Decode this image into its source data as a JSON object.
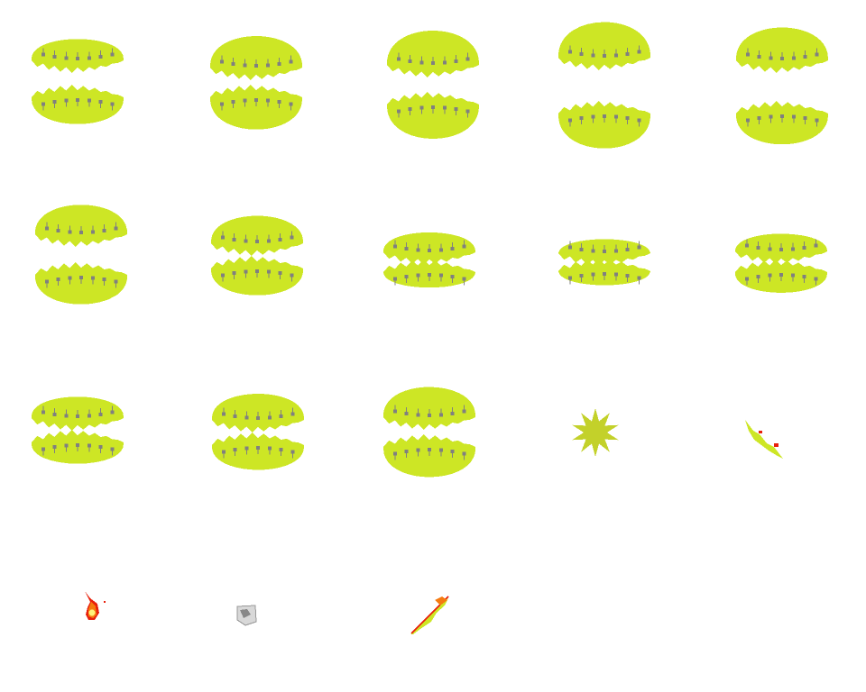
{
  "sprite_sheet": {
    "colors": {
      "jaw": "#cde625",
      "tooth_mark": "#808080",
      "tooth_shade": "#b4b4a0",
      "star": "#c3d12a",
      "fire_outer": "#e8200c",
      "fire_mid": "#f57a10",
      "fire_core": "#fff27a",
      "ice": "#b8b8b8"
    },
    "sprites": [
      {
        "kind": "mouth",
        "openness": "half-open"
      },
      {
        "kind": "mouth",
        "openness": "open"
      },
      {
        "kind": "mouth",
        "openness": "open"
      },
      {
        "kind": "mouth",
        "openness": "wide-open"
      },
      {
        "kind": "mouth",
        "openness": "wide-open"
      },
      {
        "kind": "mouth",
        "openness": "open"
      },
      {
        "kind": "mouth",
        "openness": "slightly-open"
      },
      {
        "kind": "mouth",
        "openness": "closed"
      },
      {
        "kind": "mouth",
        "openness": "closed"
      },
      {
        "kind": "mouth",
        "openness": "closed"
      },
      {
        "kind": "mouth",
        "openness": "slightly-open"
      },
      {
        "kind": "mouth",
        "openness": "slightly-open"
      },
      {
        "kind": "mouth",
        "openness": "slightly-open"
      },
      {
        "kind": "star-burst"
      },
      {
        "kind": "vine-slash"
      },
      {
        "kind": "fireball"
      },
      {
        "kind": "ice-cube"
      },
      {
        "kind": "burning-vine-slash"
      }
    ]
  }
}
